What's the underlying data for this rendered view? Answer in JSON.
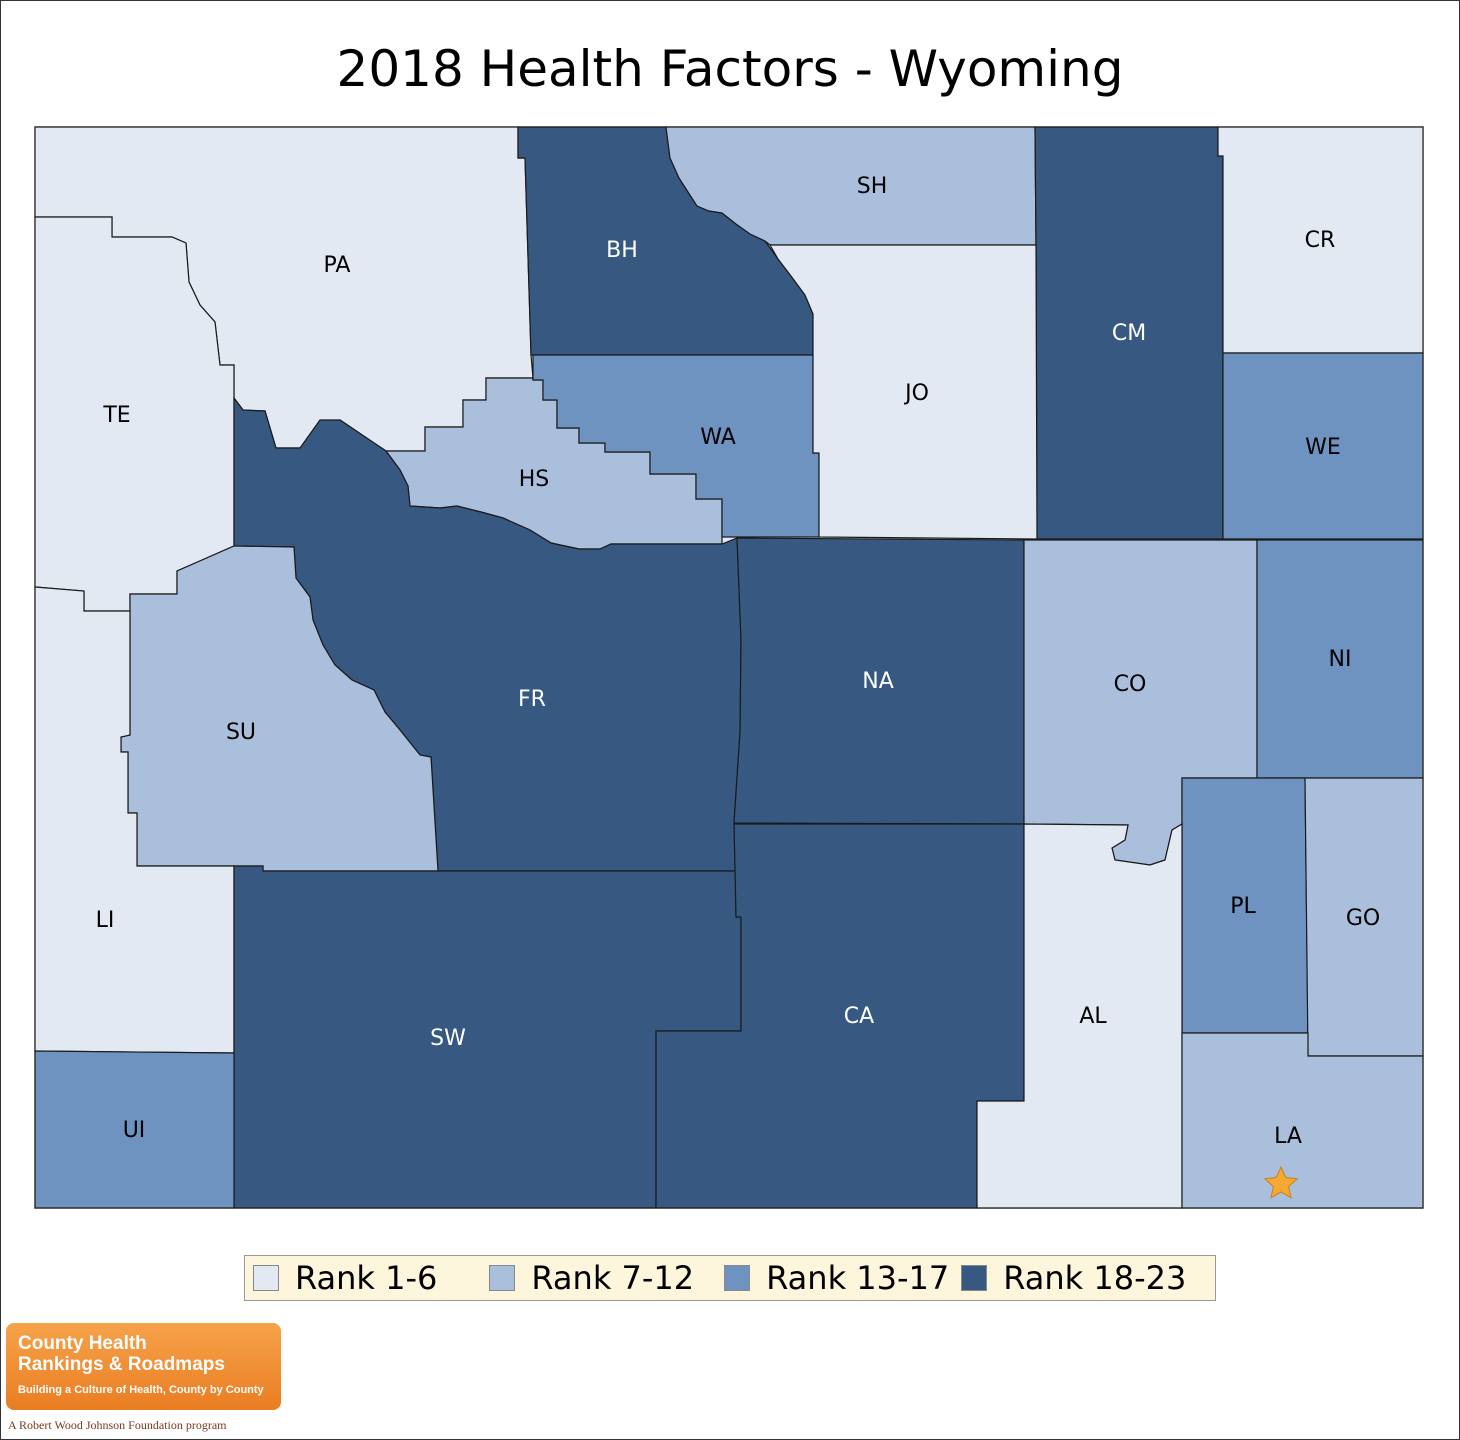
{
  "title": "2018 Health Factors - Wyoming",
  "legend": [
    {
      "label": "Rank 1-6",
      "color": "#e2e9f3"
    },
    {
      "label": "Rank 7-12",
      "color": "#aabfdb"
    },
    {
      "label": "Rank 13-17",
      "color": "#6e93c1"
    },
    {
      "label": "Rank 18-23",
      "color": "#375880"
    }
  ],
  "counties": {
    "PA": {
      "label": "PA",
      "tier": 0
    },
    "BH": {
      "label": "BH",
      "tier": 3
    },
    "SH": {
      "label": "SH",
      "tier": 1
    },
    "CM": {
      "label": "CM",
      "tier": 3
    },
    "CR": {
      "label": "CR",
      "tier": 0
    },
    "TE": {
      "label": "TE",
      "tier": 0
    },
    "HS": {
      "label": "HS",
      "tier": 1
    },
    "WA": {
      "label": "WA",
      "tier": 2
    },
    "JO": {
      "label": "JO",
      "tier": 0
    },
    "WE": {
      "label": "WE",
      "tier": 2
    },
    "FR": {
      "label": "FR",
      "tier": 3
    },
    "NA": {
      "label": "NA",
      "tier": 3
    },
    "CO": {
      "label": "CO",
      "tier": 1
    },
    "NI": {
      "label": "NI",
      "tier": 2
    },
    "SU": {
      "label": "SU",
      "tier": 1
    },
    "LI": {
      "label": "LI",
      "tier": 0
    },
    "PL": {
      "label": "PL",
      "tier": 2
    },
    "GO": {
      "label": "GO",
      "tier": 1
    },
    "SW": {
      "label": "SW",
      "tier": 3
    },
    "CA": {
      "label": "CA",
      "tier": 3
    },
    "AL": {
      "label": "AL",
      "tier": 0
    },
    "UI": {
      "label": "UI",
      "tier": 2
    },
    "LA": {
      "label": "LA",
      "tier": 1
    }
  },
  "marker": {
    "icon": "star-icon",
    "county": "LA",
    "color": "#f5a833"
  },
  "logo": {
    "line1": "County Health",
    "line2": "Rankings & Roadmaps",
    "tagline": "Building a Culture of Health, County by County",
    "program": "A Robert Wood Johnson Foundation program"
  }
}
